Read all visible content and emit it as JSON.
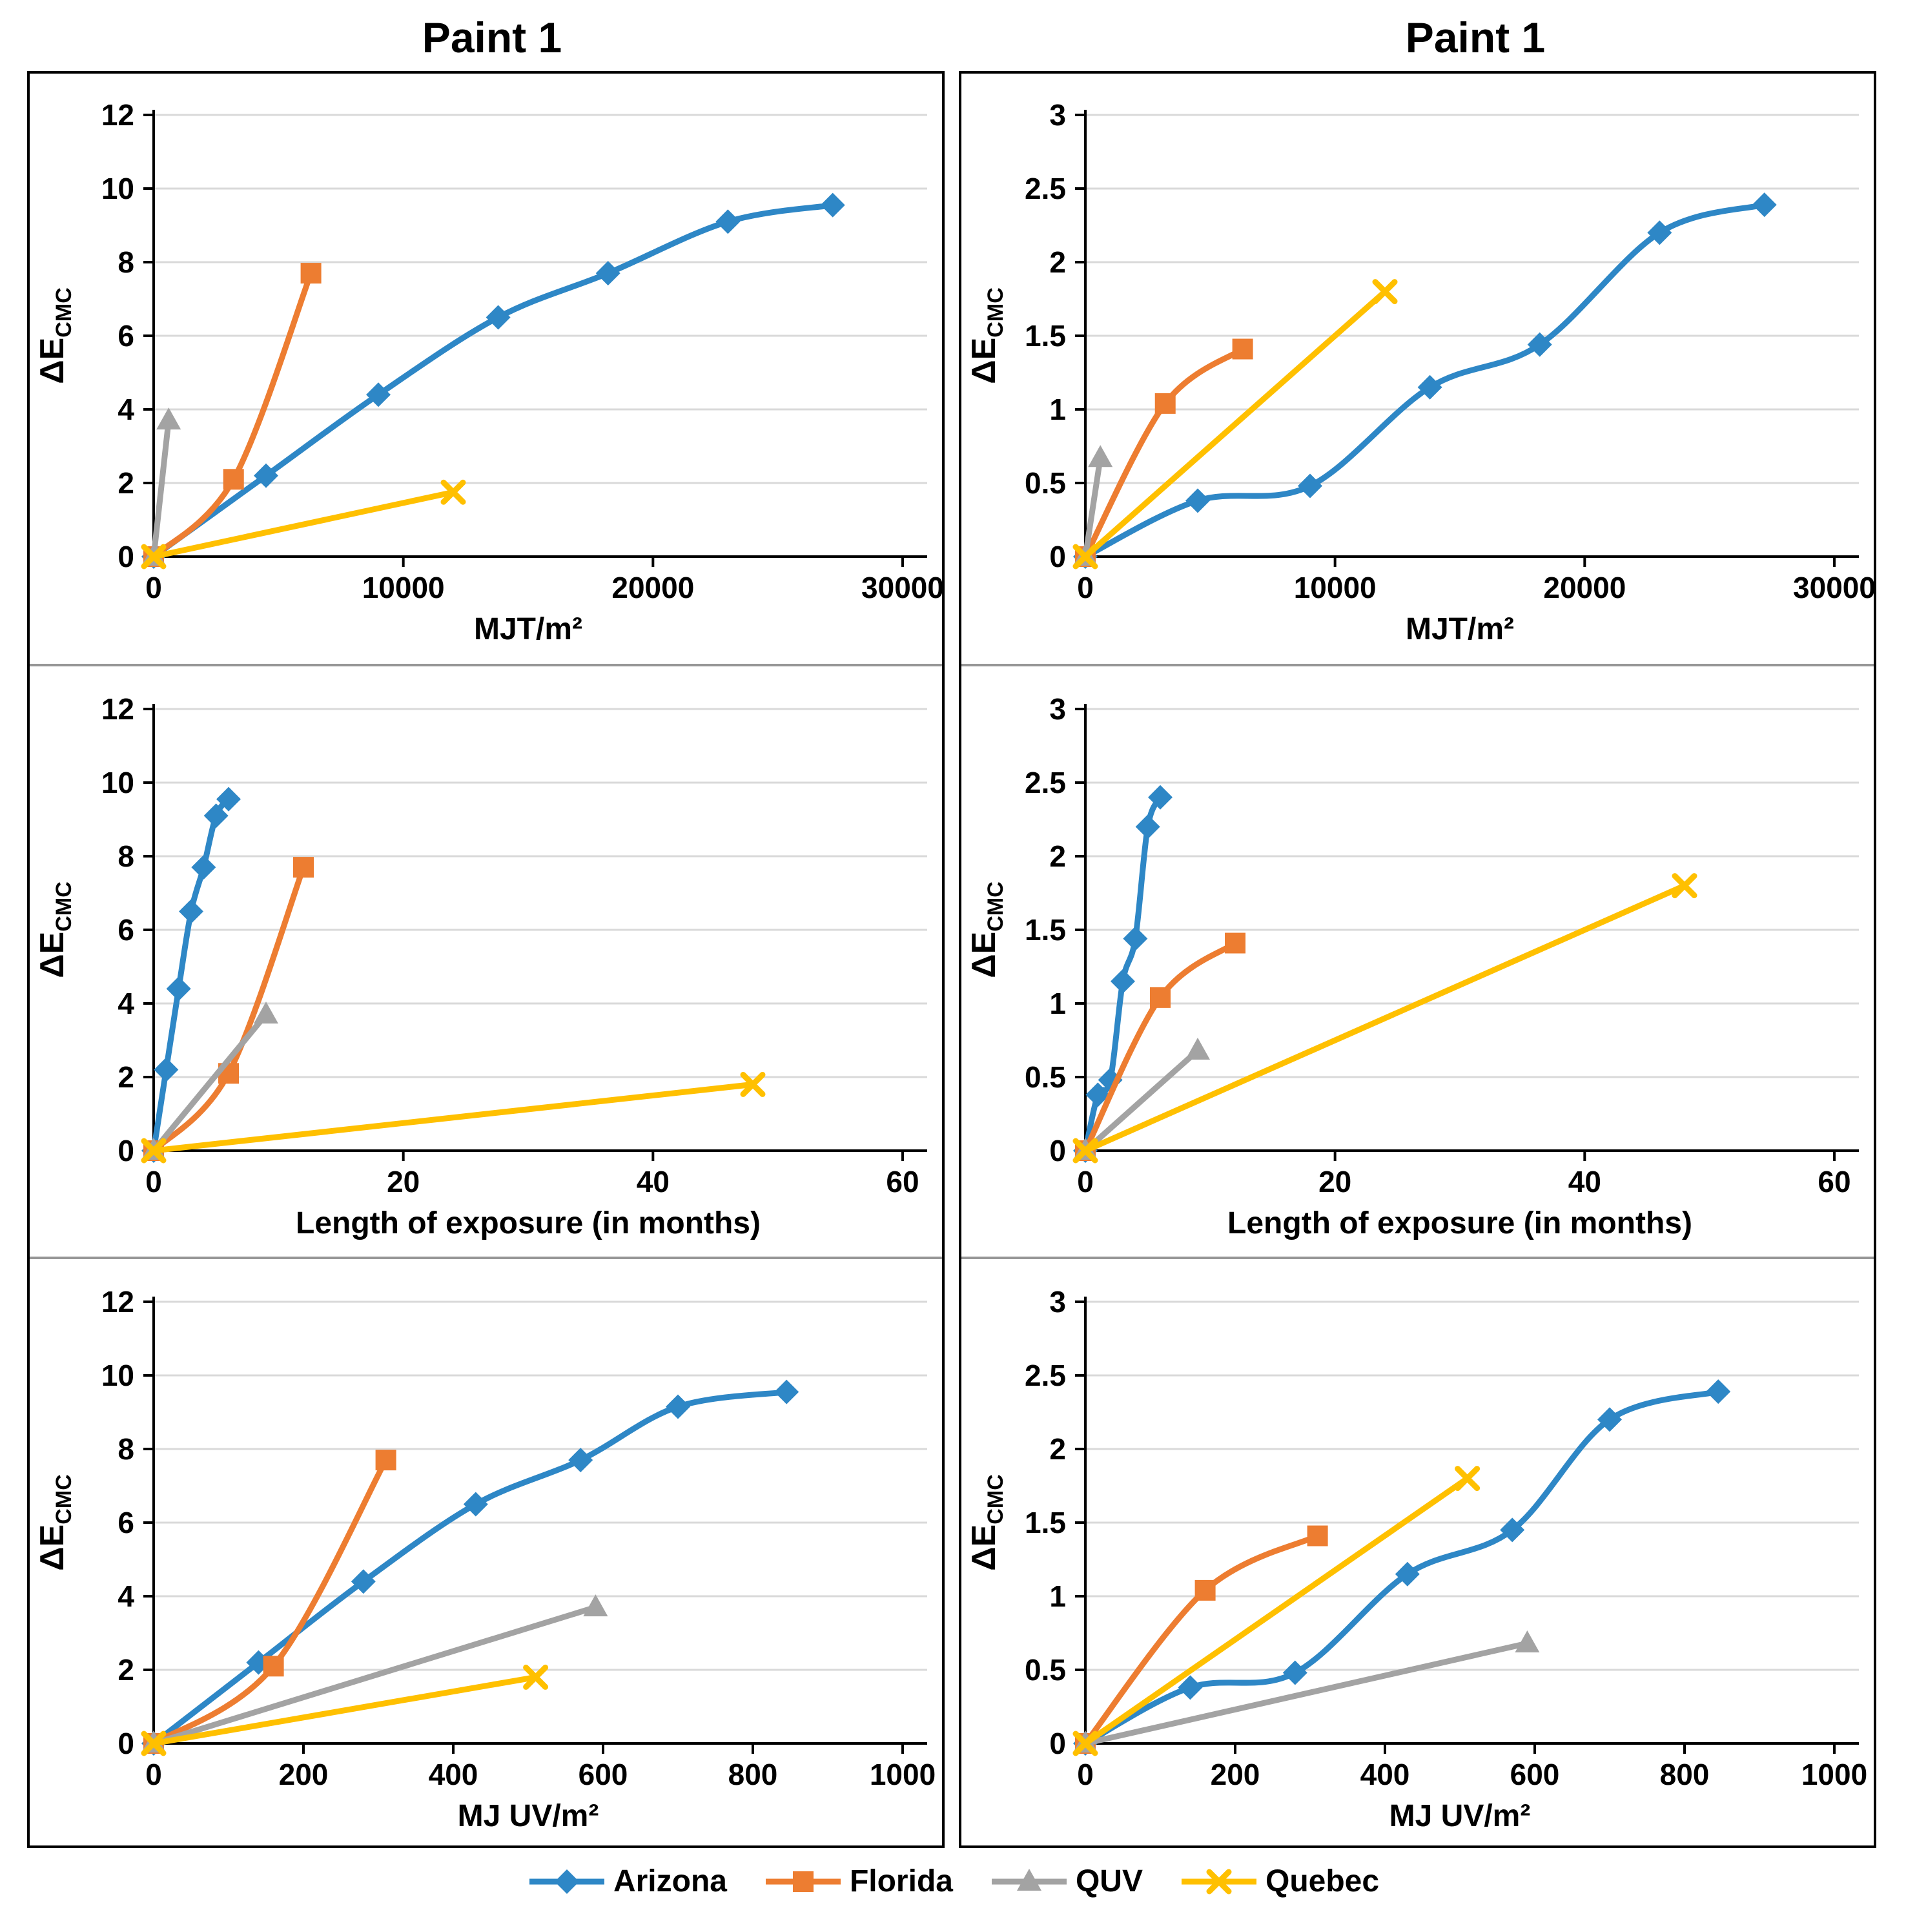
{
  "titles": {
    "left": "Paint 1",
    "right": "Paint 1"
  },
  "theme": {
    "background": "#ffffff",
    "grid_color": "#d9d9d9",
    "axis_color": "#000000",
    "panel_border_color": "#000000",
    "divider_color": "#969696",
    "text_color": "#000000"
  },
  "series_styles": [
    {
      "name": "Arizona",
      "color": "#2E87C6",
      "marker": "diamond"
    },
    {
      "name": "Florida",
      "color": "#ED7D31",
      "marker": "square"
    },
    {
      "name": "QUV",
      "color": "#A3A3A3",
      "marker": "triangle"
    },
    {
      "name": "Quebec",
      "color": "#FFC000",
      "marker": "x"
    }
  ],
  "chart_data": [
    {
      "id": "left-mjt",
      "type": "line",
      "grid": true,
      "legend_position": "shared-bottom",
      "xlabel": "MJT/m²",
      "ylabel": "ΔE",
      "ylabel_sub": "CMC",
      "xlim": [
        0,
        30000
      ],
      "xticks": [
        0,
        10000,
        20000,
        30000
      ],
      "ylim": [
        0,
        12
      ],
      "yticks": [
        0,
        2,
        4,
        6,
        8,
        10,
        12
      ],
      "series": [
        {
          "name": "Arizona",
          "x": [
            0,
            4500,
            9000,
            13800,
            18200,
            23000,
            27200
          ],
          "y": [
            0,
            2.2,
            4.4,
            6.5,
            7.7,
            9.1,
            9.55
          ]
        },
        {
          "name": "Florida",
          "x": [
            0,
            3200,
            6300
          ],
          "y": [
            0,
            2.1,
            7.7
          ]
        },
        {
          "name": "QUV",
          "x": [
            0,
            600
          ],
          "y": [
            0,
            3.7
          ]
        },
        {
          "name": "Quebec",
          "x": [
            0,
            12000
          ],
          "y": [
            0,
            1.75
          ]
        }
      ]
    },
    {
      "id": "right-mjt",
      "type": "line",
      "grid": true,
      "legend_position": "shared-bottom",
      "xlabel": "MJT/m²",
      "ylabel": "ΔE",
      "ylabel_sub": "CMC",
      "xlim": [
        0,
        30000
      ],
      "xticks": [
        0,
        10000,
        20000,
        30000
      ],
      "ylim": [
        0,
        3
      ],
      "yticks": [
        0,
        0.5,
        1,
        1.5,
        2,
        2.5,
        3
      ],
      "series": [
        {
          "name": "Arizona",
          "x": [
            0,
            4500,
            9000,
            13800,
            18200,
            23000,
            27200
          ],
          "y": [
            0,
            0.38,
            0.48,
            1.15,
            1.44,
            2.2,
            2.39
          ]
        },
        {
          "name": "Florida",
          "x": [
            0,
            3200,
            6300
          ],
          "y": [
            0,
            1.04,
            1.41
          ]
        },
        {
          "name": "QUV",
          "x": [
            0,
            600
          ],
          "y": [
            0,
            0.67
          ]
        },
        {
          "name": "Quebec",
          "x": [
            0,
            12000
          ],
          "y": [
            0,
            1.8
          ]
        }
      ]
    },
    {
      "id": "left-months",
      "type": "line",
      "grid": true,
      "legend_position": "shared-bottom",
      "xlabel": "Length of exposure (in months)",
      "ylabel": "ΔE",
      "ylabel_sub": "CMC",
      "xlim": [
        0,
        60
      ],
      "xticks": [
        0,
        20,
        40,
        60
      ],
      "ylim": [
        0,
        12
      ],
      "yticks": [
        0,
        2,
        4,
        6,
        8,
        10,
        12
      ],
      "series": [
        {
          "name": "Arizona",
          "x": [
            0,
            1,
            2,
            3,
            4,
            5,
            6
          ],
          "y": [
            0,
            2.2,
            4.4,
            6.5,
            7.7,
            9.1,
            9.55
          ]
        },
        {
          "name": "Florida",
          "x": [
            0,
            6,
            12
          ],
          "y": [
            0,
            2.1,
            7.7
          ]
        },
        {
          "name": "QUV",
          "x": [
            0,
            9
          ],
          "y": [
            0,
            3.7
          ]
        },
        {
          "name": "Quebec",
          "x": [
            0,
            48
          ],
          "y": [
            0,
            1.8
          ]
        }
      ]
    },
    {
      "id": "right-months",
      "type": "line",
      "grid": true,
      "legend_position": "shared-bottom",
      "xlabel": "Length of exposure (in months)",
      "ylabel": "ΔE",
      "ylabel_sub": "CMC",
      "xlim": [
        0,
        60
      ],
      "xticks": [
        0,
        20,
        40,
        60
      ],
      "ylim": [
        0,
        3
      ],
      "yticks": [
        0,
        0.5,
        1,
        1.5,
        2,
        2.5,
        3
      ],
      "series": [
        {
          "name": "Arizona",
          "x": [
            0,
            1,
            2,
            3,
            4,
            5,
            6
          ],
          "y": [
            0,
            0.38,
            0.48,
            1.15,
            1.44,
            2.2,
            2.4
          ]
        },
        {
          "name": "Florida",
          "x": [
            0,
            6,
            12
          ],
          "y": [
            0,
            1.04,
            1.41
          ]
        },
        {
          "name": "QUV",
          "x": [
            0,
            9
          ],
          "y": [
            0,
            0.68
          ]
        },
        {
          "name": "Quebec",
          "x": [
            0,
            48
          ],
          "y": [
            0,
            1.8
          ]
        }
      ]
    },
    {
      "id": "left-mjuv",
      "type": "line",
      "grid": true,
      "legend_position": "shared-bottom",
      "xlabel": "MJ UV/m²",
      "ylabel": "ΔE",
      "ylabel_sub": "CMC",
      "xlim": [
        0,
        1000
      ],
      "xticks": [
        0,
        200,
        400,
        600,
        800,
        1000
      ],
      "ylim": [
        0,
        12
      ],
      "yticks": [
        0,
        2,
        4,
        6,
        8,
        10,
        12
      ],
      "series": [
        {
          "name": "Arizona",
          "x": [
            0,
            140,
            280,
            430,
            570,
            700,
            845
          ],
          "y": [
            0,
            2.2,
            4.4,
            6.5,
            7.7,
            9.15,
            9.55
          ]
        },
        {
          "name": "Florida",
          "x": [
            0,
            160,
            310
          ],
          "y": [
            0,
            2.1,
            7.7
          ]
        },
        {
          "name": "QUV",
          "x": [
            0,
            590
          ],
          "y": [
            0,
            3.7
          ]
        },
        {
          "name": "Quebec",
          "x": [
            0,
            510
          ],
          "y": [
            0,
            1.8
          ]
        }
      ]
    },
    {
      "id": "right-mjuv",
      "type": "line",
      "grid": true,
      "legend_position": "shared-bottom",
      "xlabel": "MJ UV/m²",
      "ylabel": "ΔE",
      "ylabel_sub": "CMC",
      "xlim": [
        0,
        1000
      ],
      "xticks": [
        0,
        200,
        400,
        600,
        800,
        1000
      ],
      "ylim": [
        0,
        3
      ],
      "yticks": [
        0,
        0.5,
        1,
        1.5,
        2,
        2.5,
        3
      ],
      "series": [
        {
          "name": "Arizona",
          "x": [
            0,
            140,
            280,
            430,
            570,
            700,
            845
          ],
          "y": [
            0,
            0.38,
            0.48,
            1.15,
            1.45,
            2.2,
            2.39
          ]
        },
        {
          "name": "Florida",
          "x": [
            0,
            160,
            310
          ],
          "y": [
            0,
            1.04,
            1.41
          ]
        },
        {
          "name": "QUV",
          "x": [
            0,
            590
          ],
          "y": [
            0,
            0.68
          ]
        },
        {
          "name": "Quebec",
          "x": [
            0,
            510
          ],
          "y": [
            0,
            1.8
          ]
        }
      ]
    }
  ]
}
